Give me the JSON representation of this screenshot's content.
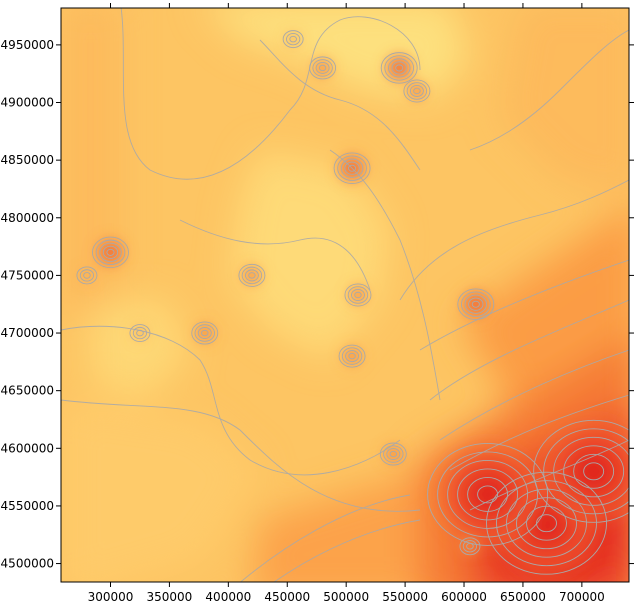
{
  "chart_data": {
    "type": "heatmap",
    "title": "",
    "xlabel": "",
    "ylabel": "",
    "xlim": [
      258000,
      740000
    ],
    "ylim": [
      4484000,
      4982000
    ],
    "x_ticks": [
      300000,
      350000,
      400000,
      450000,
      500000,
      550000,
      600000,
      650000,
      700000
    ],
    "y_ticks": [
      4500000,
      4550000,
      4600000,
      4650000,
      4700000,
      4750000,
      4800000,
      4850000,
      4900000,
      4950000
    ],
    "x_tick_labels": [
      "300000",
      "350000",
      "400000",
      "450000",
      "500000",
      "550000",
      "600000",
      "650000",
      "700000"
    ],
    "y_tick_labels": [
      "4500000",
      "4550000",
      "4600000",
      "4650000",
      "4700000",
      "4750000",
      "4800000",
      "4850000",
      "4900000",
      "4950000"
    ],
    "colormap": [
      "#fde07e",
      "#fec968",
      "#fdb85a",
      "#fb9c45",
      "#f57a36",
      "#ee4c2a",
      "#dd1c1c"
    ],
    "contour_line_color": "#a9a9a9",
    "grid": false,
    "legend": "none",
    "hotspots": [
      {
        "x": 670000,
        "y": 4535000,
        "level": "high"
      },
      {
        "x": 620000,
        "y": 4560000,
        "level": "high"
      },
      {
        "x": 710000,
        "y": 4580000,
        "level": "high"
      },
      {
        "x": 545000,
        "y": 4930000,
        "level": "mid-high"
      },
      {
        "x": 505000,
        "y": 4843000,
        "level": "mid-high"
      },
      {
        "x": 610000,
        "y": 4725000,
        "level": "mid-high"
      },
      {
        "x": 300000,
        "y": 4770000,
        "level": "mid-high"
      },
      {
        "x": 505000,
        "y": 4680000,
        "level": "mid"
      },
      {
        "x": 510000,
        "y": 4733000,
        "level": "mid"
      },
      {
        "x": 420000,
        "y": 4750000,
        "level": "mid"
      },
      {
        "x": 480000,
        "y": 4930000,
        "level": "mid"
      },
      {
        "x": 560000,
        "y": 4910000,
        "level": "mid"
      },
      {
        "x": 540000,
        "y": 4595000,
        "level": "mid"
      },
      {
        "x": 380000,
        "y": 4700000,
        "level": "mid"
      },
      {
        "x": 280000,
        "y": 4750000,
        "level": "low"
      },
      {
        "x": 455000,
        "y": 4955000,
        "level": "low"
      },
      {
        "x": 605000,
        "y": 4515000,
        "level": "low"
      },
      {
        "x": 325000,
        "y": 4700000,
        "level": "low"
      }
    ]
  }
}
